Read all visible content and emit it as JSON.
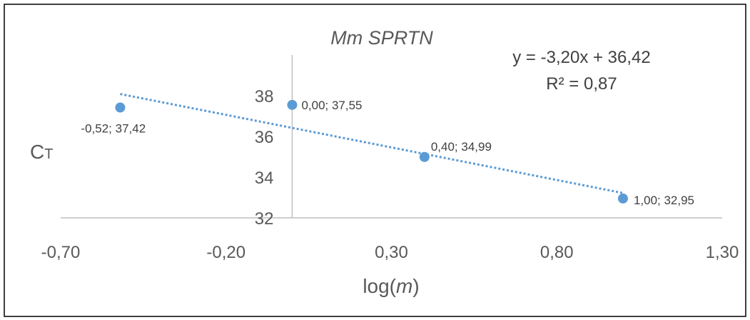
{
  "chart_data": {
    "type": "scatter",
    "title": "Mm SPRTN",
    "xlabel_prefix": "log(",
    "xlabel_var": "m",
    "xlabel_suffix": ")",
    "ylabel_main": "C",
    "ylabel_sub": "T",
    "xlim": [
      -0.7,
      1.3
    ],
    "ylim": [
      32,
      40
    ],
    "x_ticks": [
      "-0,70",
      "-0,20",
      "0,30",
      "0,80",
      "1,30"
    ],
    "x_tick_values": [
      -0.7,
      -0.2,
      0.3,
      0.8,
      1.3
    ],
    "y_ticks": [
      "32",
      "34",
      "36",
      "38"
    ],
    "y_tick_values": [
      32,
      34,
      36,
      38
    ],
    "points": [
      {
        "x": -0.52,
        "y": 37.42,
        "label": "-0,52; 37,42"
      },
      {
        "x": 0.0,
        "y": 37.55,
        "label": "0,00; 37,55"
      },
      {
        "x": 0.4,
        "y": 34.99,
        "label": "0,40; 34,99"
      },
      {
        "x": 1.0,
        "y": 32.95,
        "label": "1,00; 32,95"
      }
    ],
    "trendline": {
      "type": "linear",
      "slope": -3.2,
      "intercept": 36.42,
      "equation": "y = -3,20x + 36,42",
      "r_squared": "R² = 0,87"
    },
    "grid": false,
    "legend": "none",
    "colors": {
      "point": "#5b9bd5",
      "trendline": "#5b9bd5",
      "axis": "#bfbfbf",
      "text": "#595959",
      "border": "#000000"
    }
  }
}
